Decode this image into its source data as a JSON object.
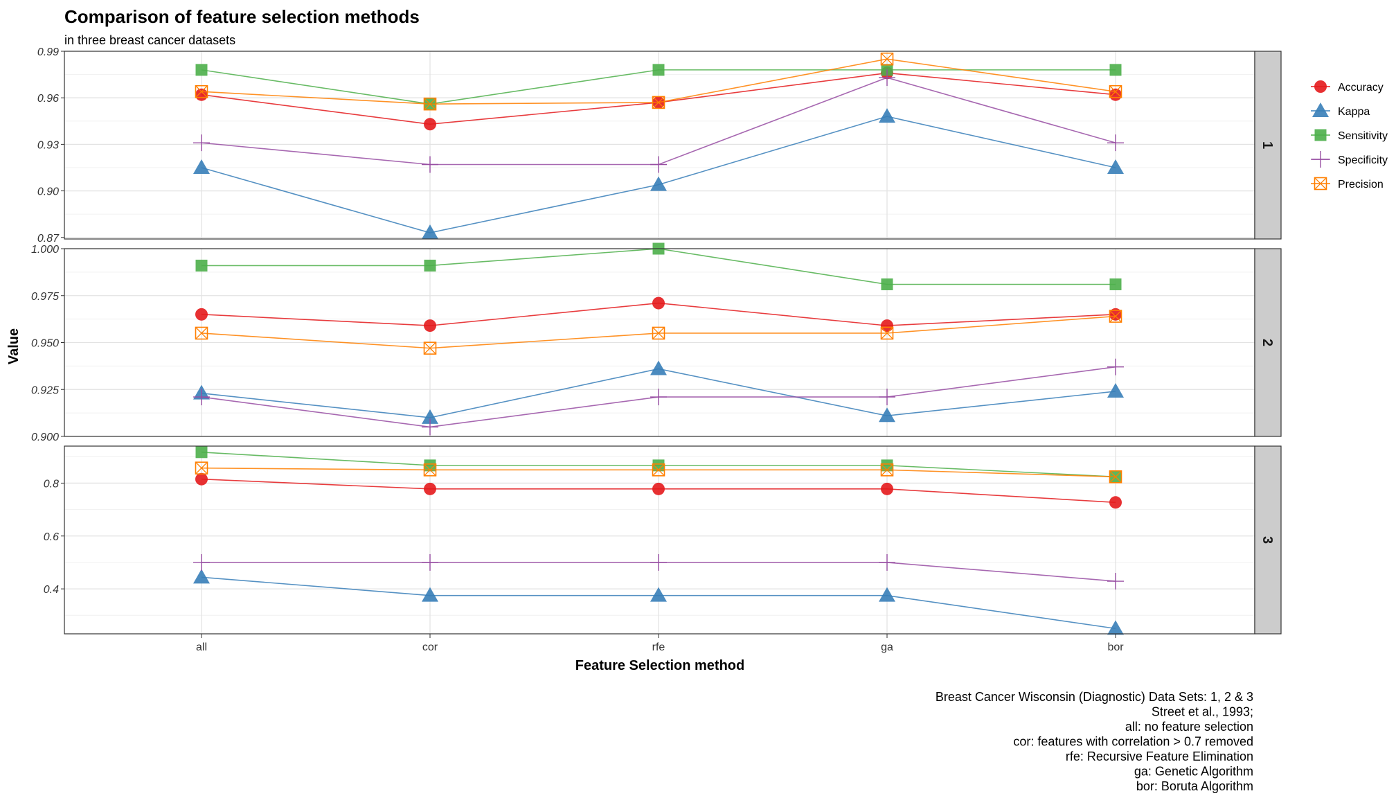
{
  "chart_data": {
    "type": "line",
    "title": "Comparison of feature selection methods",
    "subtitle": "in three breast cancer datasets",
    "xlabel": "Feature Selection method",
    "ylabel": "Value",
    "categories": [
      "all",
      "cor",
      "rfe",
      "ga",
      "bor"
    ],
    "legend_position": "right",
    "grid": true,
    "facet_scales": "free_y",
    "colors": {
      "Accuracy": "#E41A1C",
      "Kappa": "#377EB8",
      "Sensitivity": "#4DAF4A",
      "Specificity": "#984EA3",
      "Precision": "#FF7F00"
    },
    "legend": [
      {
        "name": "Accuracy",
        "shape": "circle"
      },
      {
        "name": "Kappa",
        "shape": "triangle"
      },
      {
        "name": "Sensitivity",
        "shape": "square"
      },
      {
        "name": "Specificity",
        "shape": "plus"
      },
      {
        "name": "Precision",
        "shape": "boxx"
      }
    ],
    "panels": [
      {
        "label": "1",
        "ylim": [
          0.869,
          0.99
        ],
        "yticks": [
          0.87,
          0.9,
          0.93,
          0.96,
          0.99
        ],
        "ytick_labels": [
          "0.87",
          "0.90",
          "0.93",
          "0.96",
          "0.99"
        ],
        "series": [
          {
            "name": "Accuracy",
            "values": [
              0.962,
              0.943,
              0.957,
              0.976,
              0.962
            ]
          },
          {
            "name": "Kappa",
            "values": [
              0.915,
              0.873,
              0.904,
              0.948,
              0.915
            ]
          },
          {
            "name": "Sensitivity",
            "values": [
              0.978,
              0.956,
              0.978,
              0.978,
              0.978
            ]
          },
          {
            "name": "Specificity",
            "values": [
              0.931,
              0.917,
              0.917,
              0.973,
              0.931
            ]
          },
          {
            "name": "Precision",
            "values": [
              0.964,
              0.956,
              0.957,
              0.985,
              0.964
            ]
          }
        ]
      },
      {
        "label": "2",
        "ylim": [
          0.9,
          1.0
        ],
        "yticks": [
          0.9,
          0.925,
          0.95,
          0.975,
          1.0
        ],
        "ytick_labels": [
          "0.900",
          "0.925",
          "0.950",
          "0.975",
          "1.000"
        ],
        "series": [
          {
            "name": "Accuracy",
            "values": [
              0.965,
              0.959,
              0.971,
              0.959,
              0.965
            ]
          },
          {
            "name": "Kappa",
            "values": [
              0.923,
              0.91,
              0.936,
              0.911,
              0.924
            ]
          },
          {
            "name": "Sensitivity",
            "values": [
              0.991,
              0.991,
              1.0,
              0.981,
              0.981
            ]
          },
          {
            "name": "Specificity",
            "values": [
              0.921,
              0.905,
              0.921,
              0.921,
              0.937
            ]
          },
          {
            "name": "Precision",
            "values": [
              0.955,
              0.947,
              0.955,
              0.955,
              0.964
            ]
          }
        ]
      },
      {
        "label": "3",
        "ylim": [
          0.23,
          0.94
        ],
        "yticks": [
          0.4,
          0.6,
          0.8
        ],
        "ytick_labels": [
          "0.4",
          "0.6",
          "0.8"
        ],
        "series": [
          {
            "name": "Accuracy",
            "values": [
              0.815,
              0.778,
              0.778,
              0.778,
              0.727
            ]
          },
          {
            "name": "Kappa",
            "values": [
              0.444,
              0.375,
              0.375,
              0.375,
              0.25
            ]
          },
          {
            "name": "Sensitivity",
            "values": [
              0.917,
              0.867,
              0.867,
              0.867,
              0.824
            ]
          },
          {
            "name": "Specificity",
            "values": [
              0.5,
              0.5,
              0.5,
              0.5,
              0.429
            ]
          },
          {
            "name": "Precision",
            "values": [
              0.857,
              0.85,
              0.85,
              0.85,
              0.824
            ]
          }
        ]
      }
    ],
    "caption": [
      "Breast Cancer Wisconsin (Diagnostic) Data Sets: 1, 2 & 3",
      "Street et al., 1993;",
      "all: no feature selection",
      "cor: features with correlation > 0.7 removed",
      "rfe: Recursive Feature Elimination",
      "ga: Genetic Algorithm",
      "bor: Boruta Algorithm"
    ]
  }
}
